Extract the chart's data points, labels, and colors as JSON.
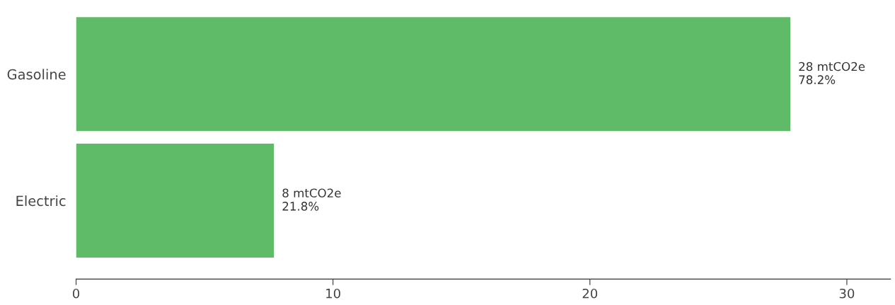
{
  "chart_data": {
    "type": "bar",
    "orientation": "horizontal",
    "categories": [
      "Gasoline",
      "Electric"
    ],
    "values": [
      27.8,
      7.7
    ],
    "value_labels": [
      "28 mtCO2e\n78.2%",
      "8 mtCO2e\n21.8%"
    ],
    "color": "#5fbb67",
    "xlim": [
      0,
      31.7
    ],
    "xticks": [
      0,
      10,
      20,
      30
    ],
    "grid": false,
    "legend": false
  }
}
